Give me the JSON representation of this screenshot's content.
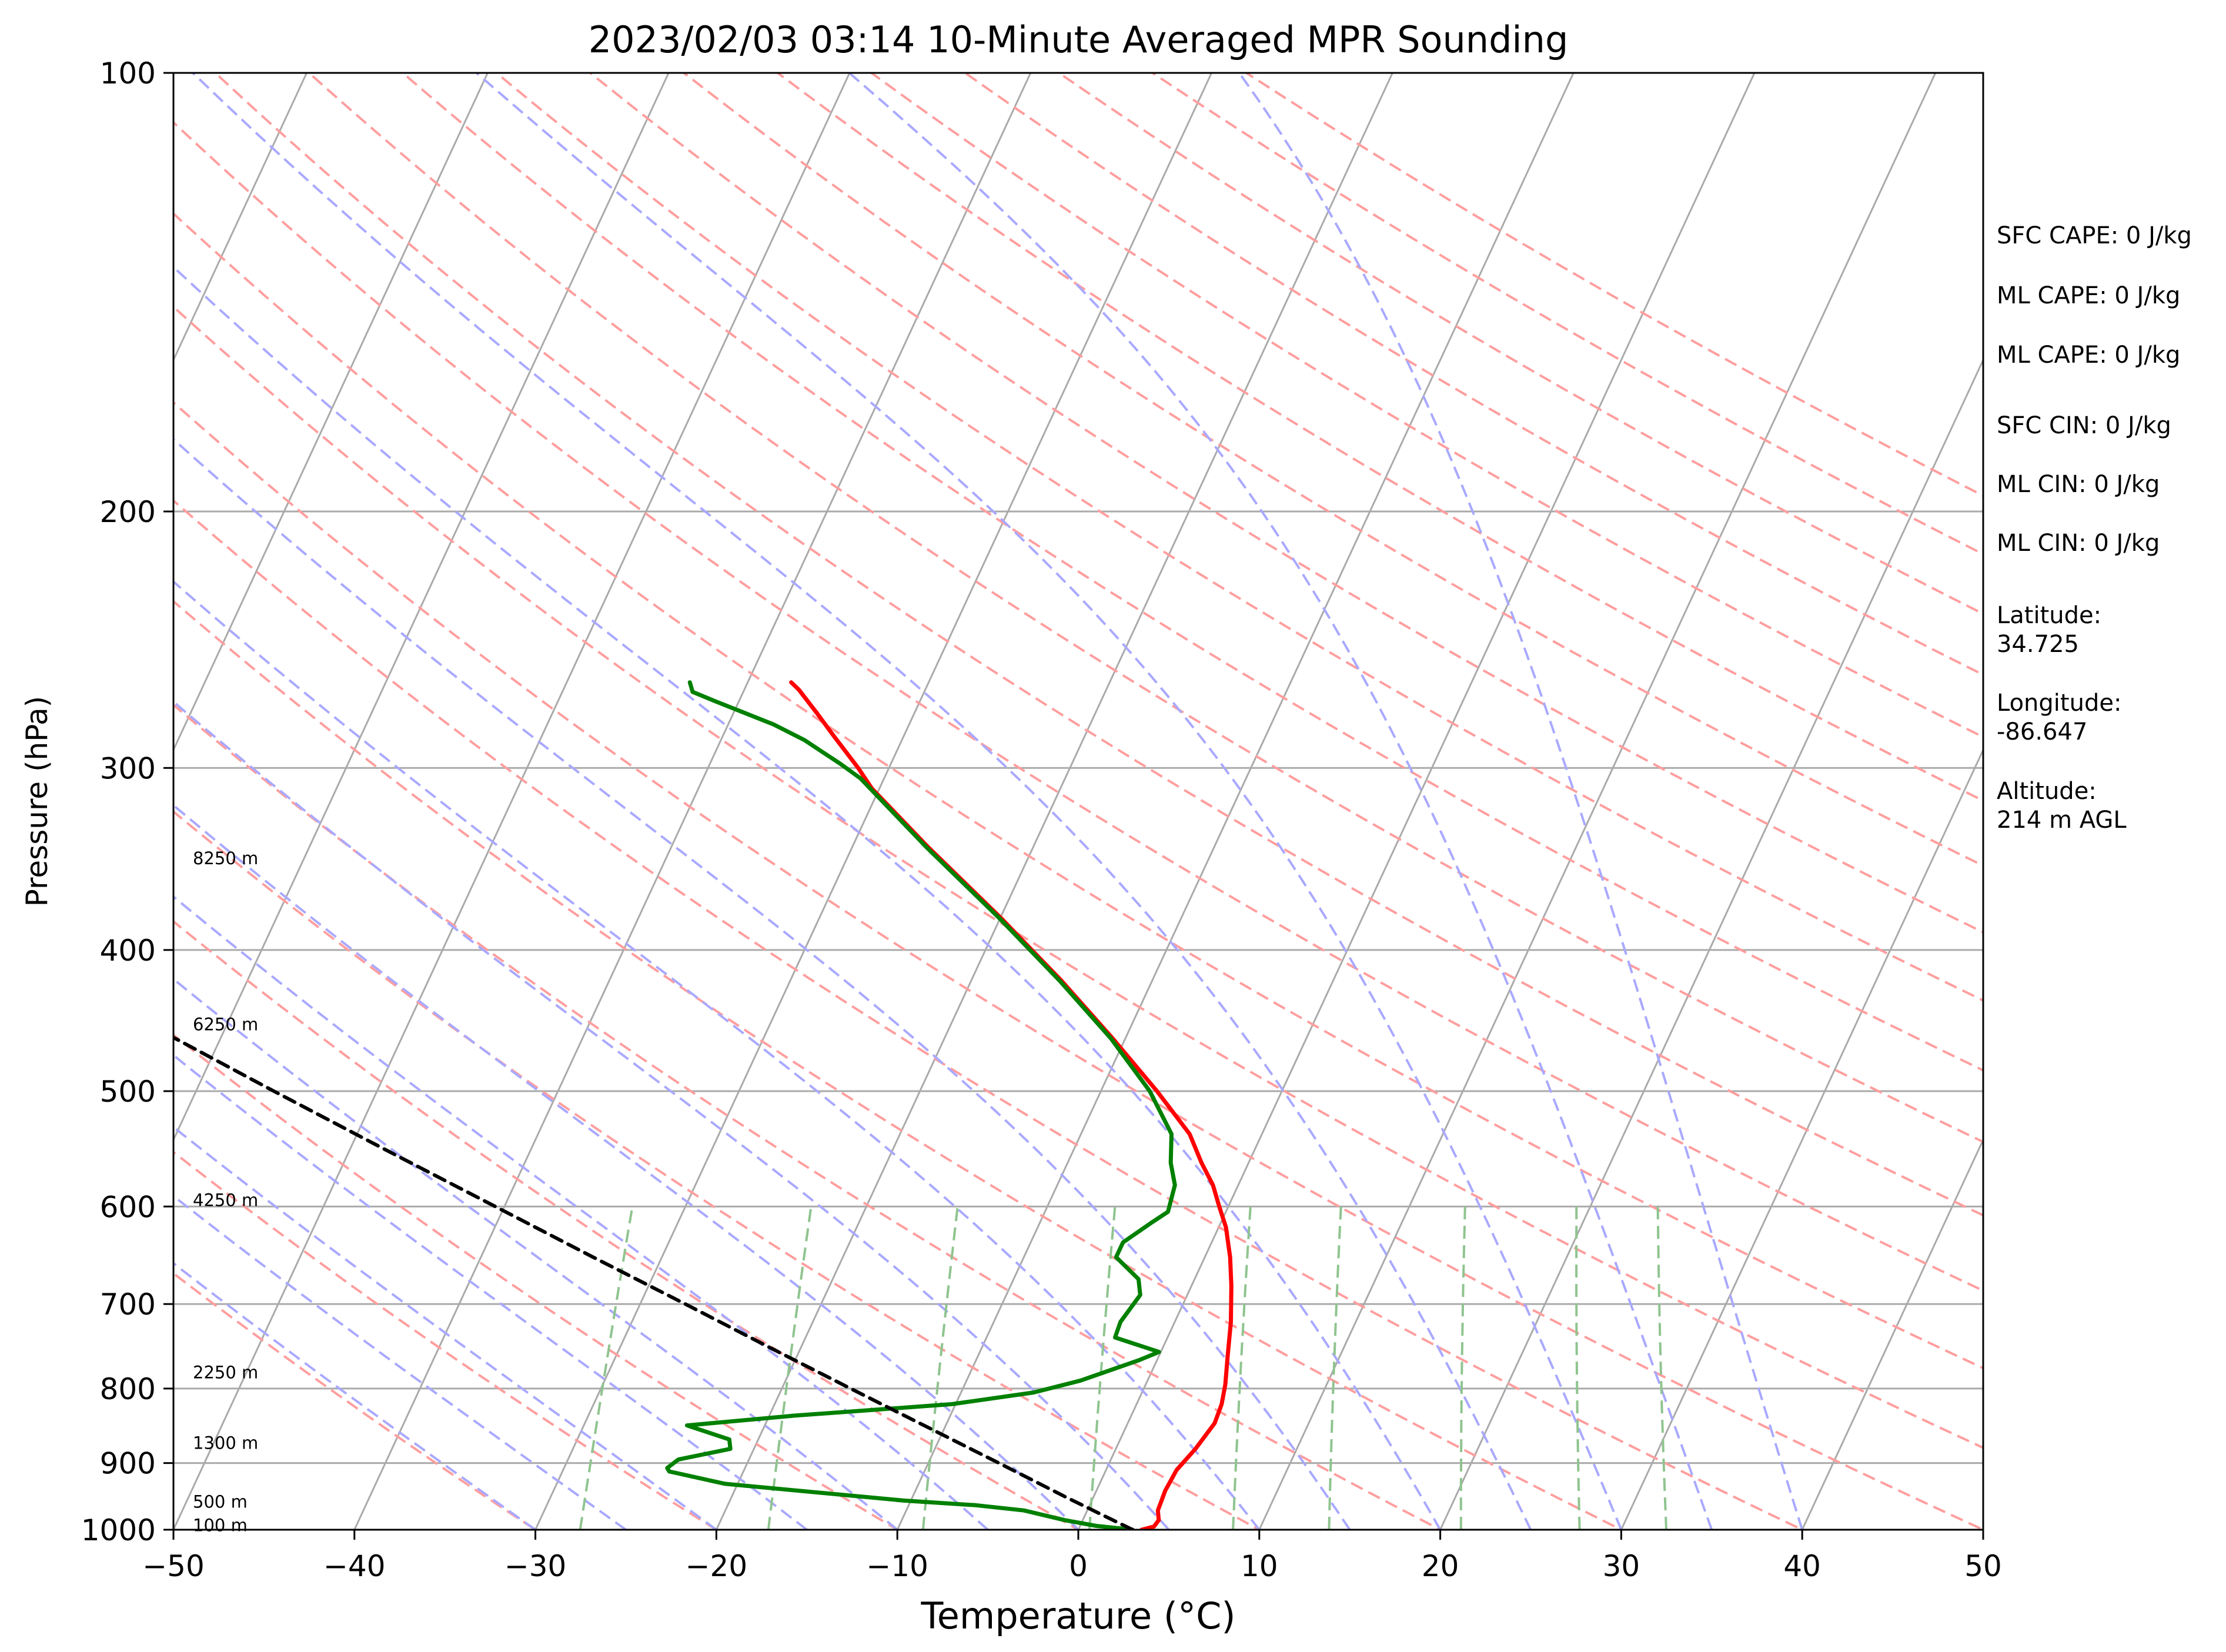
{
  "chart_data": {
    "type": "skew-t log-p",
    "title": "2023/02/03 03:14 10-Minute Averaged MPR Sounding",
    "xlabel": "Temperature (°C)",
    "ylabel": "Pressure (hPa)",
    "xlim": [
      -50,
      50
    ],
    "ylim": [
      1000,
      100
    ],
    "y_scale": "log",
    "x_ticks": [
      -50,
      -40,
      -30,
      -20,
      -10,
      0,
      10,
      20,
      30,
      40,
      50
    ],
    "x_tick_labels": [
      "−50",
      "−40",
      "−30",
      "−20",
      "−10",
      "0",
      "10",
      "20",
      "30",
      "40",
      "50"
    ],
    "y_ticks": [
      100,
      200,
      300,
      400,
      500,
      600,
      700,
      800,
      900,
      1000
    ],
    "y_tick_labels": [
      "100",
      "200",
      "300",
      "400",
      "500",
      "600",
      "700",
      "800",
      "900",
      "1000"
    ],
    "grid": true,
    "height_labels": [
      {
        "text": "8250 m",
        "pressure": 346
      },
      {
        "text": "6250 m",
        "pressure": 450
      },
      {
        "text": "4250 m",
        "pressure": 594
      },
      {
        "text": "2250 m",
        "pressure": 780
      },
      {
        "text": "1300 m",
        "pressure": 872
      },
      {
        "text": "500 m",
        "pressure": 957
      },
      {
        "text": "100 m",
        "pressure": 993
      }
    ],
    "series": [
      {
        "role": "temperature",
        "color": "#ff0000",
        "points": [
          {
            "p": 1000,
            "t": 3.5
          },
          {
            "p": 995,
            "t": 4.1
          },
          {
            "p": 985,
            "t": 4.2
          },
          {
            "p": 970,
            "t": 3.9
          },
          {
            "p": 940,
            "t": 3.8
          },
          {
            "p": 910,
            "t": 3.9
          },
          {
            "p": 880,
            "t": 4.4
          },
          {
            "p": 845,
            "t": 4.8
          },
          {
            "p": 820,
            "t": 4.7
          },
          {
            "p": 795,
            "t": 4.4
          },
          {
            "p": 760,
            "t": 3.8
          },
          {
            "p": 720,
            "t": 3.1
          },
          {
            "p": 680,
            "t": 2.2
          },
          {
            "p": 650,
            "t": 1.4
          },
          {
            "p": 620,
            "t": 0.4
          },
          {
            "p": 600,
            "t": -0.5
          },
          {
            "p": 580,
            "t": -1.4
          },
          {
            "p": 560,
            "t": -2.6
          },
          {
            "p": 535,
            "t": -4.0
          },
          {
            "p": 500,
            "t": -6.9
          },
          {
            "p": 460,
            "t": -10.7
          },
          {
            "p": 420,
            "t": -15.0
          },
          {
            "p": 380,
            "t": -20.0
          },
          {
            "p": 340,
            "t": -25.8
          },
          {
            "p": 310,
            "t": -30.4
          },
          {
            "p": 300,
            "t": -31.7
          },
          {
            "p": 285,
            "t": -33.9
          },
          {
            "p": 275,
            "t": -35.4
          },
          {
            "p": 265,
            "t": -37.0
          },
          {
            "p": 262,
            "t": -37.6
          }
        ]
      },
      {
        "role": "dewpoint",
        "color": "#008000",
        "points": [
          {
            "p": 1000,
            "t": 3.0
          },
          {
            "p": 994,
            "t": 0.9
          },
          {
            "p": 985,
            "t": -1.0
          },
          {
            "p": 970,
            "t": -3.5
          },
          {
            "p": 962,
            "t": -6.3
          },
          {
            "p": 955,
            "t": -10.4
          },
          {
            "p": 930,
            "t": -20.7
          },
          {
            "p": 912,
            "t": -24.1
          },
          {
            "p": 907,
            "t": -24.3
          },
          {
            "p": 895,
            "t": -23.9
          },
          {
            "p": 880,
            "t": -21.3
          },
          {
            "p": 867,
            "t": -21.6
          },
          {
            "p": 848,
            "t": -24.3
          },
          {
            "p": 835,
            "t": -18.6
          },
          {
            "p": 820,
            "t": -10.2
          },
          {
            "p": 805,
            "t": -6.0
          },
          {
            "p": 790,
            "t": -3.7
          },
          {
            "p": 765,
            "t": -1.0
          },
          {
            "p": 755,
            "t": -0.1
          },
          {
            "p": 738,
            "t": -2.9
          },
          {
            "p": 720,
            "t": -3.0
          },
          {
            "p": 690,
            "t": -2.6
          },
          {
            "p": 673,
            "t": -3.1
          },
          {
            "p": 650,
            "t": -4.9
          },
          {
            "p": 635,
            "t": -4.9
          },
          {
            "p": 615,
            "t": -3.8
          },
          {
            "p": 605,
            "t": -3.2
          },
          {
            "p": 580,
            "t": -3.5
          },
          {
            "p": 560,
            "t": -4.3
          },
          {
            "p": 535,
            "t": -5.0
          },
          {
            "p": 500,
            "t": -7.3
          },
          {
            "p": 460,
            "t": -10.8
          },
          {
            "p": 420,
            "t": -15.1
          },
          {
            "p": 380,
            "t": -20.1
          },
          {
            "p": 340,
            "t": -25.9
          },
          {
            "p": 305,
            "t": -31.3
          },
          {
            "p": 298,
            "t": -32.8
          },
          {
            "p": 287,
            "t": -35.4
          },
          {
            "p": 280,
            "t": -37.5
          },
          {
            "p": 270,
            "t": -41.3
          },
          {
            "p": 266,
            "t": -42.8
          },
          {
            "p": 262,
            "t": -43.2
          }
        ]
      },
      {
        "role": "parcel",
        "color": "#000000",
        "points": [
          {
            "p": 1000,
            "t": 3.0
          },
          {
            "p": 950,
            "t": -1.5
          },
          {
            "p": 900,
            "t": -6.1
          },
          {
            "p": 850,
            "t": -11.0
          },
          {
            "p": 800,
            "t": -16.2
          },
          {
            "p": 750,
            "t": -21.7
          },
          {
            "p": 700,
            "t": -27.5
          },
          {
            "p": 650,
            "t": -33.8
          },
          {
            "p": 600,
            "t": -40.5
          },
          {
            "p": 550,
            "t": -47.8
          },
          {
            "p": 500,
            "t": -55.7
          },
          {
            "p": 450,
            "t": -64.3
          },
          {
            "p": 400,
            "t": -73.8
          },
          {
            "p": 350,
            "t": -84.5
          },
          {
            "p": 300,
            "t": -96.6
          },
          {
            "p": 266,
            "t": -106.0
          }
        ]
      }
    ],
    "background_lines": {
      "isotherm_color": "#aaaaaa",
      "isobar_color": "#aaaaaa",
      "dry_adiabat_color": "#ff9e9e",
      "moist_adiabat_color": "#a9a9ff",
      "mixing_ratio_color": "#8fc48f"
    }
  },
  "sidebar": {
    "sfc_cape": "SFC CAPE: 0 J/kg",
    "ml_cape_1": "ML CAPE: 0 J/kg",
    "ml_cape_2": "ML CAPE: 0 J/kg",
    "sfc_cin": "SFC CIN: 0 J/kg",
    "ml_cin_1": "ML CIN: 0 J/kg",
    "ml_cin_2": "ML CIN: 0 J/kg",
    "latitude_label": "Latitude:",
    "latitude_value": "34.725",
    "longitude_label": "Longitude:",
    "longitude_value": "-86.647",
    "altitude_label": "Altitude:",
    "altitude_value": "214 m AGL"
  }
}
